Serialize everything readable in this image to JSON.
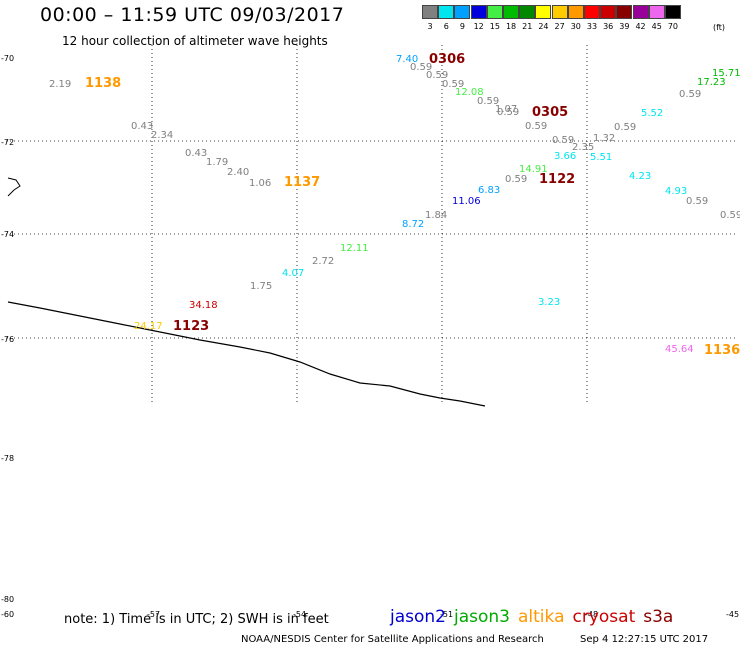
{
  "header": {
    "title": "00:00 – 11:59 UTC 09/03/2017",
    "subtitle": "12 hour collection of altimeter wave heights"
  },
  "scale": {
    "unit": "(ft)",
    "bins": [
      {
        "label": "3",
        "color": "#808080"
      },
      {
        "label": "6",
        "color": "#00e5ee"
      },
      {
        "label": "9",
        "color": "#00a0ff"
      },
      {
        "label": "12",
        "color": "#0000dd"
      },
      {
        "label": "15",
        "color": "#44ee44"
      },
      {
        "label": "18",
        "color": "#00bb00"
      },
      {
        "label": "21",
        "color": "#008800"
      },
      {
        "label": "24",
        "color": "#ffff00"
      },
      {
        "label": "27",
        "color": "#ffcc00"
      },
      {
        "label": "30",
        "color": "#ff9900"
      },
      {
        "label": "33",
        "color": "#ff0000"
      },
      {
        "label": "36",
        "color": "#cc0000"
      },
      {
        "label": "39",
        "color": "#880000"
      },
      {
        "label": "42",
        "color": "#990099"
      },
      {
        "label": "45",
        "color": "#ee66ee"
      },
      {
        "label": "70",
        "color": "#000000"
      }
    ]
  },
  "axes": {
    "lat_labels": [
      "-70",
      "-72",
      "-74",
      "-76",
      "-78",
      "-80"
    ],
    "lon_labels": [
      "-60",
      "-57",
      "-54",
      "-51",
      "-48",
      "-45"
    ]
  },
  "labels": {
    "wave_heights": [
      {
        "text": "7.40",
        "color": "#00a0ff"
      },
      {
        "text": "0.59",
        "color": "#808080"
      },
      {
        "text": "0.59",
        "color": "#808080"
      },
      {
        "text": "0.59",
        "color": "#808080"
      },
      {
        "text": "12.08",
        "color": "#44ee44"
      },
      {
        "text": "0.59",
        "color": "#808080"
      },
      {
        "text": "1.07",
        "color": "#808080"
      },
      {
        "text": "0.59",
        "color": "#808080"
      },
      {
        "text": "0.59",
        "color": "#808080"
      },
      {
        "text": "0.59",
        "color": "#808080"
      },
      {
        "text": "2.35",
        "color": "#808080"
      },
      {
        "text": "1.32",
        "color": "#808080"
      },
      {
        "text": "0.59",
        "color": "#808080"
      },
      {
        "text": "5.52",
        "color": "#00e5ee"
      },
      {
        "text": "0.59",
        "color": "#808080"
      },
      {
        "text": "17.23",
        "color": "#00bb00"
      },
      {
        "text": "15.71",
        "color": "#00bb00"
      },
      {
        "text": "3.66",
        "color": "#00e5ee"
      },
      {
        "text": "5.51",
        "color": "#00e5ee"
      },
      {
        "text": "14.91",
        "color": "#44ee44"
      },
      {
        "text": "0.59",
        "color": "#808080"
      },
      {
        "text": "6.83",
        "color": "#00a0ff"
      },
      {
        "text": "11.06",
        "color": "#0000dd"
      },
      {
        "text": "1.84",
        "color": "#808080"
      },
      {
        "text": "8.72",
        "color": "#00a0ff"
      },
      {
        "text": "4.23",
        "color": "#00e5ee"
      },
      {
        "text": "4.93",
        "color": "#00e5ee"
      },
      {
        "text": "0.59",
        "color": "#808080"
      },
      {
        "text": "0.59",
        "color": "#808080"
      },
      {
        "text": "2.19",
        "color": "#808080"
      },
      {
        "text": "0.43",
        "color": "#808080"
      },
      {
        "text": "2.34",
        "color": "#808080"
      },
      {
        "text": "0.43",
        "color": "#808080"
      },
      {
        "text": "1.79",
        "color": "#808080"
      },
      {
        "text": "2.40",
        "color": "#808080"
      },
      {
        "text": "1.06",
        "color": "#808080"
      },
      {
        "text": "12.11",
        "color": "#44ee44"
      },
      {
        "text": "2.72",
        "color": "#808080"
      },
      {
        "text": "4.07",
        "color": "#00e5ee"
      },
      {
        "text": "1.75",
        "color": "#808080"
      },
      {
        "text": "34.18",
        "color": "#cc0000"
      },
      {
        "text": "24.17",
        "color": "#ffcc00"
      },
      {
        "text": "3.23",
        "color": "#00e5ee"
      },
      {
        "text": "45.64",
        "color": "#ee66ee"
      }
    ],
    "pass_times": [
      {
        "text": "0306",
        "color": "#880000"
      },
      {
        "text": "0305",
        "color": "#880000"
      },
      {
        "text": "1122",
        "color": "#880000"
      },
      {
        "text": "1138",
        "color": "#ff9900"
      },
      {
        "text": "1137",
        "color": "#ff9900"
      },
      {
        "text": "1123",
        "color": "#880000"
      },
      {
        "text": "1136",
        "color": "#ff9900"
      }
    ]
  },
  "footer": {
    "note": "note: 1) Time is in UTC; 2) SWH is in feet",
    "satellites": [
      {
        "name": "jason2",
        "color": "#0000cc"
      },
      {
        "name": "jason3",
        "color": "#00aa00"
      },
      {
        "name": "altika",
        "color": "#ff9900"
      },
      {
        "name": "cryosat",
        "color": "#cc0000"
      },
      {
        "name": "s3a",
        "color": "#880000"
      }
    ],
    "credit": "NOAA/NESDIS Center for Satellite Applications and Research",
    "timestamp": "Sep  4 12:27:15 UTC 2017"
  }
}
